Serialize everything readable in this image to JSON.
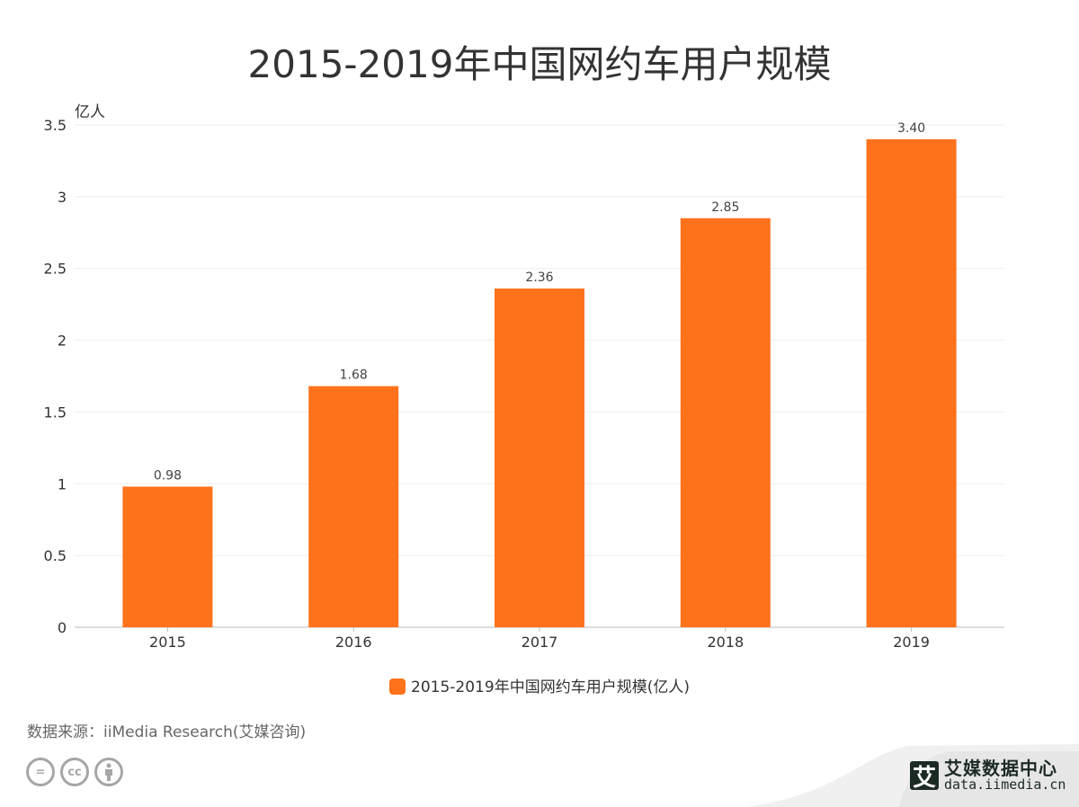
{
  "chart_data": {
    "type": "bar",
    "title": "2015-2019年中国网约车用户规模",
    "ylabel": "亿人",
    "xlabel": "",
    "categories": [
      "2015",
      "2016",
      "2017",
      "2018",
      "2019"
    ],
    "values": [
      0.98,
      1.68,
      2.36,
      2.85,
      3.4
    ],
    "data_labels": [
      "0.98",
      "1.68",
      "2.36",
      "2.85",
      "3.40"
    ],
    "ylim": [
      0,
      3.5
    ],
    "yticks": [
      0,
      0.5,
      1,
      1.5,
      2,
      2.5,
      3,
      3.5
    ],
    "ytick_labels": [
      "0",
      "0.5",
      "1",
      "1.5",
      "2",
      "2.5",
      "3",
      "3.5"
    ],
    "grid": true,
    "legend": {
      "label": "2015-2019年中国网约车用户规模(亿人)",
      "placement": "bottom"
    },
    "color": "#ff721c"
  },
  "footer": {
    "source": "数据来源：iiMedia Research(艾媒咨询)",
    "license_icons": [
      "cc-nd-icon",
      "cc-icon",
      "cc-by-icon"
    ],
    "brand_mark": "艾",
    "brand_name": "艾媒数据中心",
    "brand_url": "data.iimedia.cn"
  }
}
